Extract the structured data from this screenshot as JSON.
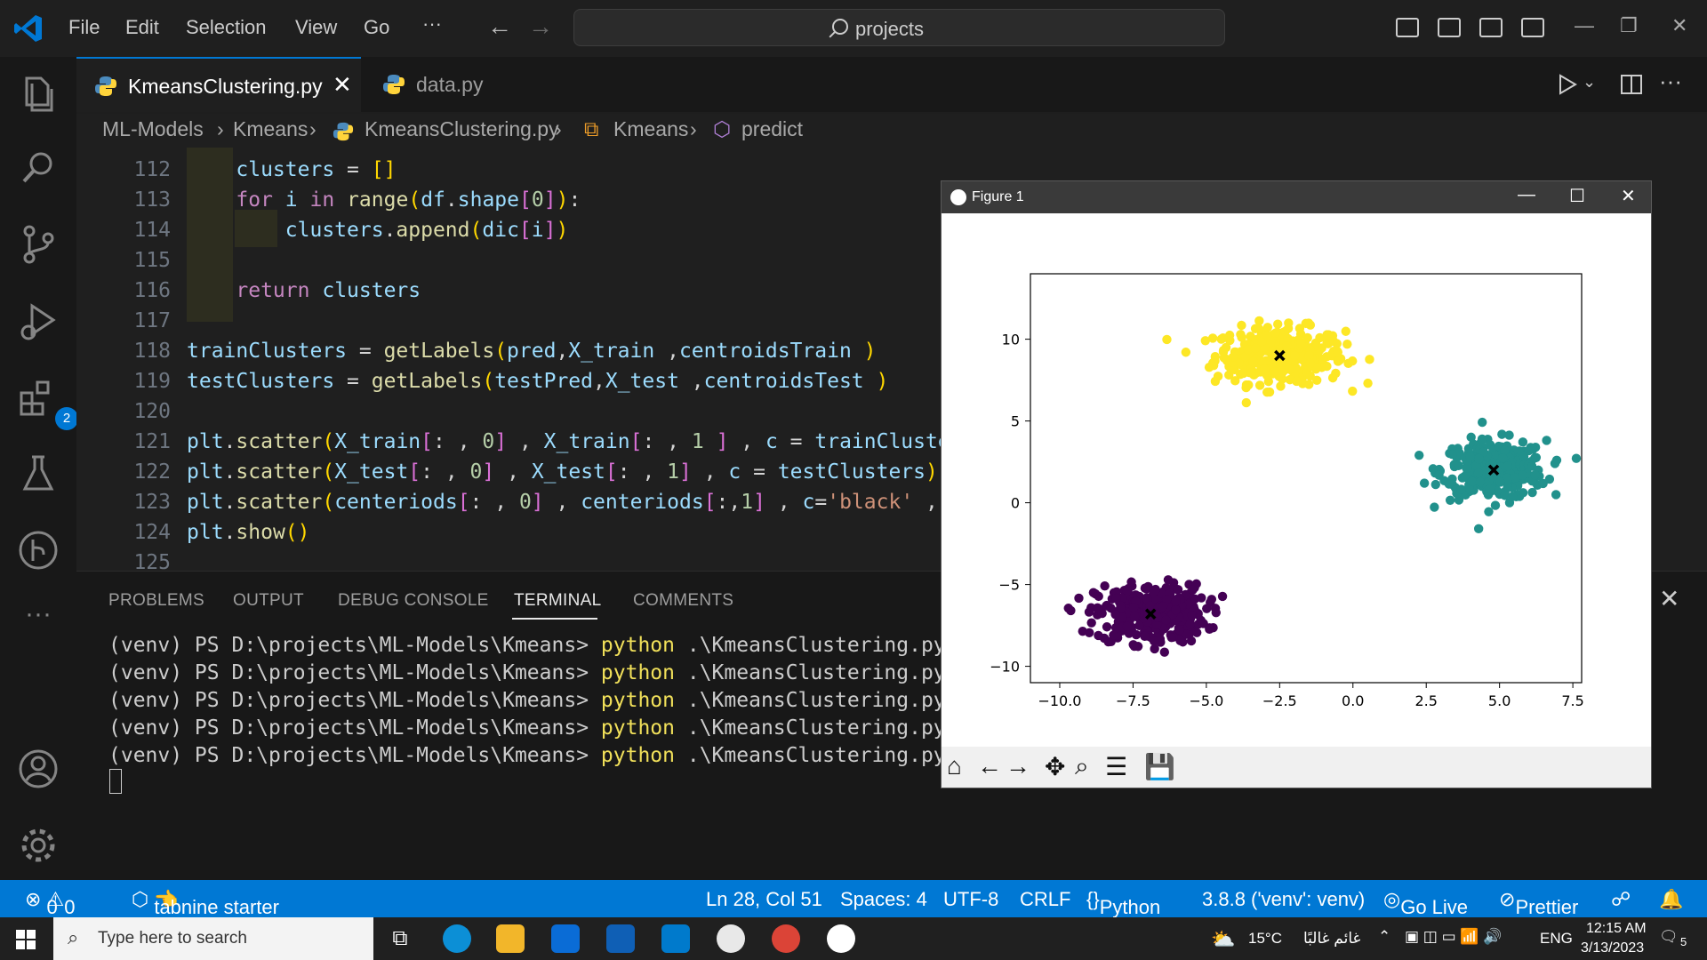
{
  "titlebar": {
    "menus": [
      "File",
      "Edit",
      "Selection",
      "View",
      "Go",
      "···"
    ],
    "search": "projects",
    "window_controls": [
      "—",
      "❐",
      "✕"
    ]
  },
  "activity": {
    "extensions_badge": "2"
  },
  "tabs": [
    {
      "label": "KmeansClustering.py",
      "active": true
    },
    {
      "label": "data.py",
      "active": false
    }
  ],
  "breadcrumb": [
    "ML-Models",
    "Kmeans",
    "KmeansClustering.py",
    "Kmeans",
    "predict"
  ],
  "code_lines": [
    {
      "n": "112"
    },
    {
      "n": "113"
    },
    {
      "n": "114"
    },
    {
      "n": "115"
    },
    {
      "n": "116"
    },
    {
      "n": "117"
    },
    {
      "n": "118"
    },
    {
      "n": "119"
    },
    {
      "n": "120"
    },
    {
      "n": "121"
    },
    {
      "n": "122"
    },
    {
      "n": "123"
    },
    {
      "n": "124"
    },
    {
      "n": "125"
    }
  ],
  "panel": {
    "tabs": [
      "PROBLEMS",
      "OUTPUT",
      "DEBUG CONSOLE",
      "TERMINAL",
      "COMMENTS"
    ],
    "active_tab": "TERMINAL",
    "prompt": "(venv) PS D:\\projects\\ML-Models\\Kmeans>",
    "command": "python",
    "arg": ".\\KmeansClustering.py",
    "line_count": 5
  },
  "statusbar": {
    "errors": "0",
    "warnings": "0",
    "tabnine": "tabnine starter",
    "position": "Ln 28, Col 51",
    "spaces": "Spaces: 4",
    "encoding": "UTF-8",
    "eol": "CRLF",
    "language": "Python",
    "interpreter": "3.8.8 ('venv': venv)",
    "golive": "Go Live",
    "prettier": "Prettier"
  },
  "taskbar": {
    "search_placeholder": "Type here to search",
    "weather": "15°C",
    "weather_text": "غائم غالبًا",
    "lang": "ENG",
    "time": "12:15 AM",
    "date": "3/13/2023",
    "notifications": "5"
  },
  "figure": {
    "title": "Figure 1",
    "toolbar": [
      "home-icon",
      "back-icon",
      "forward-icon",
      "pan-icon",
      "zoom-icon",
      "configure-icon",
      "save-icon"
    ]
  },
  "chart_data": {
    "type": "scatter",
    "title": "",
    "xlabel": "",
    "ylabel": "",
    "xlim": [
      -11.0,
      7.8
    ],
    "ylim": [
      -11.0,
      14.0
    ],
    "xticks": [
      -10.0,
      -7.5,
      -5.0,
      -2.5,
      0.0,
      2.5,
      5.0,
      7.5
    ],
    "xtick_labels": [
      "−10.0",
      "−7.5",
      "−5.0",
      "−2.5",
      "0.0",
      "2.5",
      "5.0",
      "7.5"
    ],
    "yticks": [
      10,
      5,
      0,
      -5,
      -10
    ],
    "ytick_labels": [
      "10",
      "5",
      "0",
      "−5",
      "−10"
    ],
    "grid": false,
    "series": [
      {
        "color": "#fde725",
        "center": [
          -2.5,
          9.0
        ],
        "spread": [
          1.3,
          1.0
        ],
        "count": 330
      },
      {
        "color": "#21918c",
        "center": [
          4.8,
          2.0
        ],
        "spread": [
          1.05,
          1.05
        ],
        "count": 330
      },
      {
        "color": "#440154",
        "center": [
          -6.9,
          -6.8
        ],
        "spread": [
          1.1,
          1.05
        ],
        "count": 330
      }
    ],
    "centroids": {
      "color": "#000000",
      "marker": "X",
      "points": [
        [
          -2.5,
          9.0
        ],
        [
          4.8,
          2.0
        ],
        [
          -6.9,
          -6.8
        ]
      ]
    }
  }
}
